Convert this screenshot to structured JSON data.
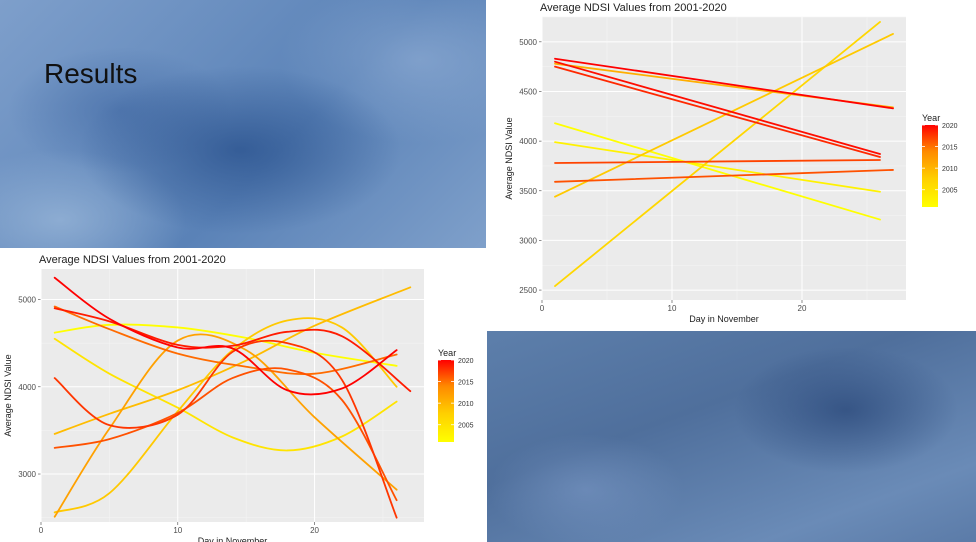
{
  "slide": {
    "heading": "Results"
  },
  "legend_colors": {
    "2005": "#ffff00",
    "2010": "#ffcf00",
    "2015": "#ff8a00",
    "2020": "#ff0000"
  },
  "chart_data": [
    {
      "type": "line",
      "smoothing": "loess",
      "title": "Average NDSI Values from 2001-2020",
      "xlabel": "Day in November",
      "ylabel": "Average NDSI Value",
      "xlim": [
        0,
        28
      ],
      "ylim": [
        2450,
        5350
      ],
      "xticks": [
        0,
        10,
        20
      ],
      "yticks": [
        3000,
        4000,
        5000
      ],
      "legend": {
        "title": "Year",
        "position": "right",
        "ticks": [
          2005,
          2010,
          2015,
          2020
        ]
      },
      "series": [
        {
          "year": 2001,
          "points": [
            [
              1,
              4620
            ],
            [
              5,
              4710
            ],
            [
              10,
              4680
            ],
            [
              15,
              4560
            ],
            [
              20,
              4390
            ],
            [
              26,
              4240
            ]
          ]
        },
        {
          "year": 2003,
          "points": [
            [
              1,
              4550
            ],
            [
              5,
              4150
            ],
            [
              10,
              3760
            ],
            [
              14,
              3420
            ],
            [
              18,
              3270
            ],
            [
              22,
              3430
            ],
            [
              26,
              3830
            ]
          ]
        },
        {
          "year": 2005,
          "points": [
            [
              1,
              2560
            ],
            [
              5,
              2780
            ],
            [
              10,
              3720
            ],
            [
              14,
              4420
            ],
            [
              18,
              4760
            ],
            [
              22,
              4680
            ],
            [
              26,
              4000
            ]
          ]
        },
        {
          "year": 2006,
          "points": [
            [
              1,
              3460
            ],
            [
              5,
              3690
            ],
            [
              10,
              3960
            ],
            [
              15,
              4300
            ],
            [
              20,
              4700
            ],
            [
              27,
              5140
            ]
          ]
        },
        {
          "year": 2008,
          "points": [
            [
              1,
              2510
            ],
            [
              5,
              3520
            ],
            [
              10,
              4530
            ],
            [
              15,
              4420
            ],
            [
              20,
              3650
            ],
            [
              26,
              2820
            ]
          ]
        },
        {
          "year": 2012,
          "points": [
            [
              1,
              4920
            ],
            [
              5,
              4660
            ],
            [
              10,
              4380
            ],
            [
              15,
              4230
            ],
            [
              20,
              4150
            ],
            [
              26,
              4370
            ]
          ]
        },
        {
          "year": 2014,
          "points": [
            [
              1,
              3300
            ],
            [
              5,
              3400
            ],
            [
              10,
              3700
            ],
            [
              14,
              4100
            ],
            [
              18,
              4200
            ],
            [
              22,
              3850
            ],
            [
              26,
              2700
            ]
          ]
        },
        {
          "year": 2016,
          "points": [
            [
              1,
              4100
            ],
            [
              5,
              3560
            ],
            [
              10,
              3680
            ],
            [
              14,
              4400
            ],
            [
              18,
              4500
            ],
            [
              22,
              4080
            ],
            [
              26,
              2500
            ]
          ]
        },
        {
          "year": 2018,
          "points": [
            [
              1,
              4900
            ],
            [
              5,
              4750
            ],
            [
              10,
              4480
            ],
            [
              14,
              4470
            ],
            [
              18,
              4630
            ],
            [
              22,
              4580
            ],
            [
              27,
              3950
            ]
          ]
        },
        {
          "year": 2020,
          "points": [
            [
              1,
              5250
            ],
            [
              5,
              4780
            ],
            [
              10,
              4450
            ],
            [
              14,
              4440
            ],
            [
              18,
              3960
            ],
            [
              22,
              3980
            ],
            [
              26,
              4420
            ]
          ]
        }
      ]
    },
    {
      "type": "line",
      "smoothing": "linear",
      "title": "Average NDSI Values from 2001-2020",
      "xlabel": "Day in November",
      "ylabel": "Average NDSI Value",
      "xlim": [
        0,
        28
      ],
      "ylim": [
        2400,
        5250
      ],
      "xticks": [
        0,
        10,
        20
      ],
      "yticks": [
        2500,
        3000,
        3500,
        4000,
        4500,
        5000
      ],
      "legend": {
        "title": "Year",
        "position": "right",
        "ticks": [
          2005,
          2010,
          2015,
          2020
        ]
      },
      "series": [
        {
          "year": 2001,
          "points": [
            [
              1,
              4180
            ],
            [
              26,
              3210
            ]
          ]
        },
        {
          "year": 2002,
          "points": [
            [
              1,
              3990
            ],
            [
              26,
              3490
            ]
          ]
        },
        {
          "year": 2004,
          "points": [
            [
              1,
              2540
            ],
            [
              26,
              5200
            ]
          ]
        },
        {
          "year": 2005,
          "points": [
            [
              1,
              3440
            ],
            [
              27,
              5080
            ]
          ]
        },
        {
          "year": 2007,
          "points": [
            [
              1,
              4780
            ],
            [
              27,
              4340
            ]
          ]
        },
        {
          "year": 2014,
          "points": [
            [
              1,
              3590
            ],
            [
              27,
              3710
            ]
          ]
        },
        {
          "year": 2015,
          "points": [
            [
              1,
              3780
            ],
            [
              26,
              3810
            ]
          ]
        },
        {
          "year": 2017,
          "points": [
            [
              1,
              4750
            ],
            [
              26,
              3840
            ]
          ]
        },
        {
          "year": 2019,
          "points": [
            [
              1,
              4800
            ],
            [
              26,
              3870
            ]
          ]
        },
        {
          "year": 2020,
          "points": [
            [
              1,
              4830
            ],
            [
              27,
              4330
            ]
          ]
        }
      ]
    }
  ]
}
